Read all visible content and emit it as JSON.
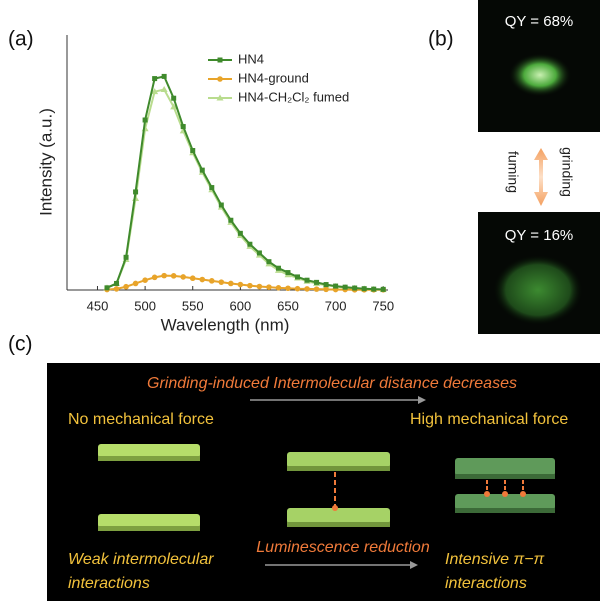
{
  "panels": {
    "a": "(a)",
    "b": "(b)",
    "c": "(c)"
  },
  "chart_data": {
    "type": "line",
    "xlabel": "Wavelength (nm)",
    "ylabel": "Intensity (a.u.)",
    "x": [
      460,
      470,
      480,
      490,
      500,
      510,
      520,
      530,
      540,
      550,
      560,
      570,
      580,
      590,
      600,
      610,
      620,
      630,
      640,
      650,
      660,
      670,
      680,
      690,
      700,
      710,
      720,
      730,
      740,
      750
    ],
    "series": [
      {
        "name": "HN4",
        "color": "#3f8a2c",
        "marker": "square",
        "values": [
          0.01,
          0.03,
          0.15,
          0.45,
          0.78,
          0.97,
          0.98,
          0.88,
          0.75,
          0.64,
          0.55,
          0.47,
          0.39,
          0.32,
          0.26,
          0.21,
          0.17,
          0.13,
          0.1,
          0.08,
          0.06,
          0.045,
          0.035,
          0.025,
          0.018,
          0.013,
          0.009,
          0.006,
          0.004,
          0.003
        ]
      },
      {
        "name": "HN4-ground",
        "color": "#e8a42a",
        "marker": "circle",
        "values": [
          0.002,
          0.005,
          0.015,
          0.03,
          0.045,
          0.058,
          0.066,
          0.065,
          0.06,
          0.054,
          0.048,
          0.042,
          0.036,
          0.03,
          0.025,
          0.02,
          0.016,
          0.013,
          0.01,
          0.008,
          0.006,
          0.005,
          0.004,
          0.003,
          0.002,
          0.002,
          0.001,
          0.001,
          0.001,
          0.001
        ]
      },
      {
        "name": "HN4-CH₂Cl₂ fumed",
        "color": "#b9dc8e",
        "marker": "triangle",
        "values": [
          0.01,
          0.03,
          0.14,
          0.42,
          0.74,
          0.91,
          0.92,
          0.84,
          0.73,
          0.63,
          0.54,
          0.46,
          0.38,
          0.31,
          0.25,
          0.2,
          0.16,
          0.12,
          0.09,
          0.07,
          0.055,
          0.04,
          0.03,
          0.022,
          0.016,
          0.011,
          0.008,
          0.005,
          0.003,
          0.002
        ]
      }
    ],
    "xlim": [
      418,
      755
    ],
    "xticks": [
      450,
      500,
      550,
      600,
      650,
      700,
      750
    ],
    "ylim": [
      0,
      1.17
    ],
    "legend": "upper right"
  },
  "photos": {
    "top": "QY =  68%",
    "bottom": "QY =  16%",
    "up_label": "fuming",
    "down_label": "grinding"
  },
  "scheme": {
    "top_text": "Grinding-induced Intermolecular distance decreases",
    "left_title": "No mechanical force",
    "right_title": "High mechanical force",
    "middle_text": "Luminescence reduction",
    "left_caption": [
      "Weak intermolecular",
      "interactions"
    ],
    "right_caption": [
      "Intensive π−π",
      "interactions"
    ]
  }
}
